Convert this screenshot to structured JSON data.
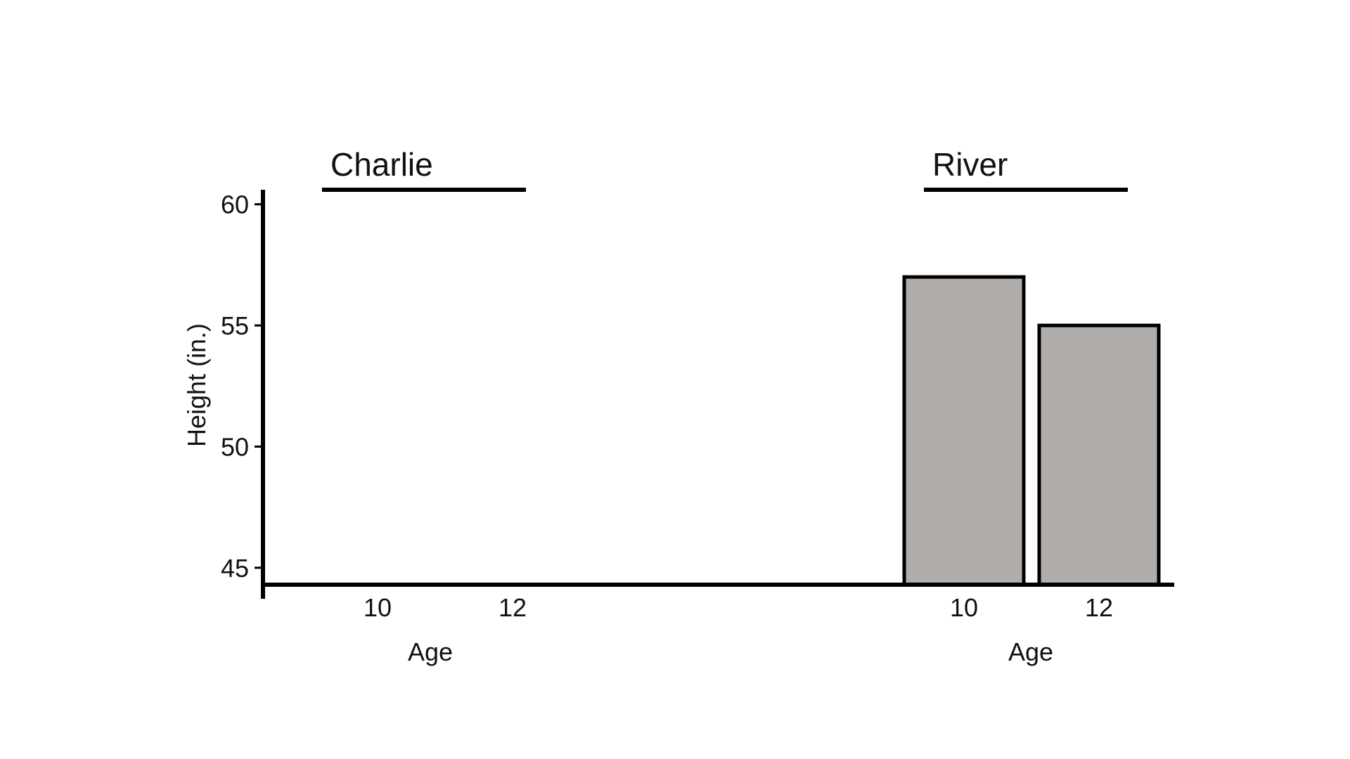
{
  "chart_data": {
    "type": "bar",
    "ylabel": "Height (in.)",
    "ylim": [
      44.3,
      60.6
    ],
    "yticks": [
      45,
      50,
      55,
      60
    ],
    "groups": [
      {
        "name": "Charlie",
        "xlabel": "Age",
        "categories": [
          "10",
          "12"
        ],
        "values": [
          null,
          null
        ]
      },
      {
        "name": "River",
        "xlabel": "Age",
        "categories": [
          "10",
          "12"
        ],
        "values": [
          57,
          55
        ]
      }
    ],
    "colors": {
      "bar_fill": "#b0adab",
      "stroke": "#000000"
    },
    "grid": false,
    "legend": "none"
  }
}
